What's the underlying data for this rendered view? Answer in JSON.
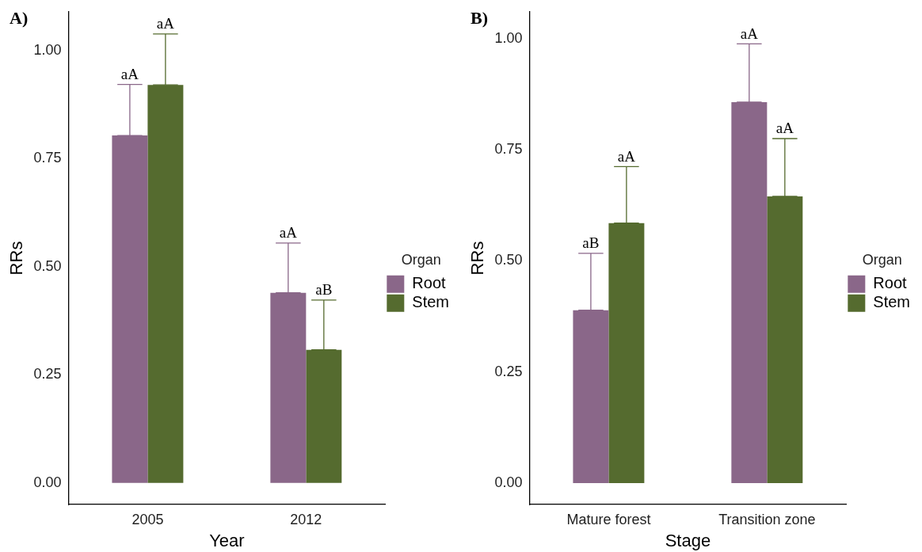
{
  "chart_data": [
    {
      "type": "bar",
      "title": "A)",
      "xlabel": "Year",
      "ylabel": "RRs",
      "legend_title": "Organ",
      "legend": "right",
      "grid": false,
      "categories": [
        "2005",
        "2012"
      ],
      "series": [
        {
          "name": "Root",
          "color": "#8a6789",
          "values": [
            0.804,
            0.44
          ],
          "errors": [
            [
              0.804,
              0.922
            ],
            [
              0.44,
              0.555
            ]
          ]
        },
        {
          "name": "Stem",
          "color": "#556b2f",
          "values": [
            0.921,
            0.308
          ],
          "errors": [
            [
              0.921,
              1.039
            ],
            [
              0.308,
              0.423
            ]
          ]
        }
      ],
      "ylim": [
        -0.05,
        1.09
      ],
      "yticks": [
        {
          "value": 0,
          "label": "0.00"
        },
        {
          "value": 0.25,
          "label": "0.25"
        },
        {
          "value": 0.5,
          "label": "0.50"
        },
        {
          "value": 0.75,
          "label": "0.75"
        },
        {
          "value": 1,
          "label": "1.00"
        }
      ],
      "annotations": [
        "aA",
        "aA",
        "aA",
        "aB"
      ]
    },
    {
      "type": "bar",
      "title": "B)",
      "xlabel": "Stage",
      "ylabel": "RRs",
      "legend_title": "Organ",
      "legend": "right",
      "grid": false,
      "categories": [
        "Mature forest",
        "Transition zone"
      ],
      "series": [
        {
          "name": "Root",
          "color": "#8a6789",
          "values": [
            0.389,
            0.857
          ],
          "errors": [
            [
              0.389,
              0.517
            ],
            [
              0.857,
              0.988
            ]
          ]
        },
        {
          "name": "Stem",
          "color": "#556b2f",
          "values": [
            0.585,
            0.645
          ],
          "errors": [
            [
              0.585,
              0.712
            ],
            [
              0.645,
              0.775
            ]
          ]
        }
      ],
      "ylim": [
        -0.048,
        1.06
      ],
      "yticks": [
        {
          "value": 0,
          "label": "0.00"
        },
        {
          "value": 0.25,
          "label": "0.25"
        },
        {
          "value": 0.5,
          "label": "0.50"
        },
        {
          "value": 0.75,
          "label": "0.75"
        },
        {
          "value": 1,
          "label": "1.00"
        }
      ],
      "annotations": [
        "aB",
        "aA",
        "aA",
        "aA"
      ]
    }
  ]
}
